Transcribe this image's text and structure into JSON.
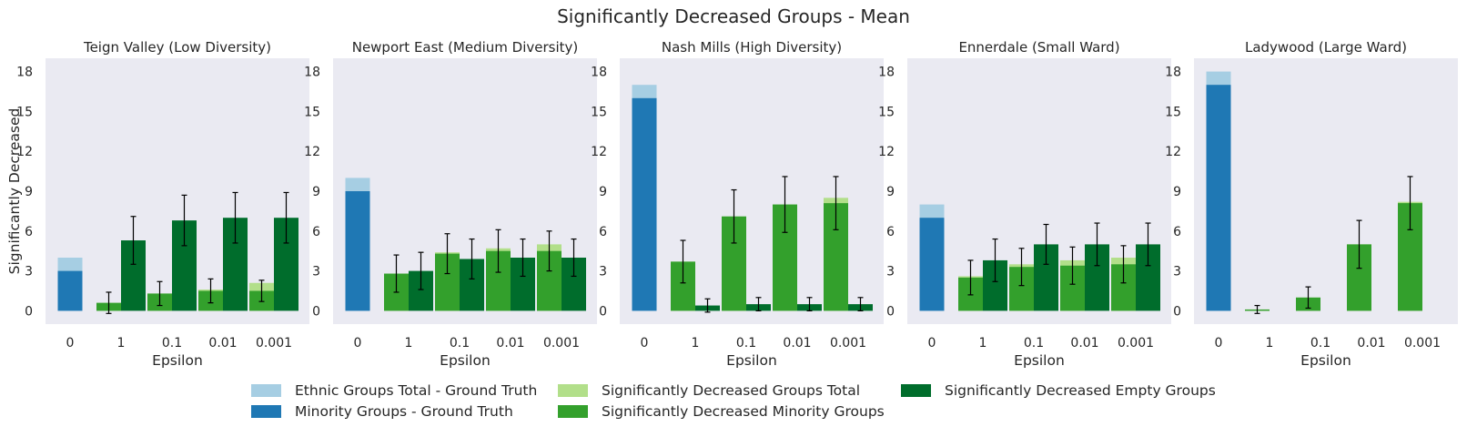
{
  "title": "Significantly Decreased Groups  - Mean",
  "colors": {
    "bg": "#eaeaf2",
    "ethnic_total": "#a6cee3",
    "minority": "#1f78b4",
    "sig_total": "#b2df8a",
    "sig_minority": "#33a02c",
    "sig_empty": "#006d2c"
  },
  "legend": [
    {
      "name": "Ethnic Groups Total - Ground Truth",
      "color_key": "ethnic_total"
    },
    {
      "name": "Minority Groups - Ground Truth",
      "color_key": "minority"
    },
    {
      "name": "Significantly Decreased Groups Total",
      "color_key": "sig_total"
    },
    {
      "name": "Significantly Decreased Minority Groups",
      "color_key": "sig_minority"
    },
    {
      "name": "Significantly Decreased Empty Groups",
      "color_key": "sig_empty"
    }
  ],
  "chart_data": {
    "type": "bar",
    "ylabel": "Significantly Decreased",
    "xlabel": "Epsilon",
    "ylim": [
      -1,
      19
    ],
    "yticks": [
      0,
      3,
      6,
      9,
      12,
      15,
      18
    ],
    "categories": [
      "0",
      "1",
      "0.1",
      "0.01",
      "0.001"
    ],
    "grid": false,
    "panels": [
      {
        "title": "Teign Valley (Low Diversity)",
        "ethnic_total": 4,
        "minority": 3,
        "sig_total": [
          0.6,
          1.3,
          1.6,
          2.1
        ],
        "sig_minority": [
          {
            "value": 0.6,
            "err": 0.8
          },
          {
            "value": 1.3,
            "err": 0.9
          },
          {
            "value": 1.5,
            "err": 0.9
          },
          {
            "value": 1.5,
            "err": 0.8
          }
        ],
        "sig_empty": [
          {
            "value": 5.3,
            "err": 1.8
          },
          {
            "value": 6.8,
            "err": 1.9
          },
          {
            "value": 7.0,
            "err": 1.9
          },
          {
            "value": 7.0,
            "err": 1.9
          }
        ]
      },
      {
        "title": "Newport East (Medium Diversity)",
        "ethnic_total": 10,
        "minority": 9,
        "sig_total": [
          2.8,
          4.4,
          4.7,
          5.0
        ],
        "sig_minority": [
          {
            "value": 2.8,
            "err": 1.4
          },
          {
            "value": 4.3,
            "err": 1.5
          },
          {
            "value": 4.5,
            "err": 1.6
          },
          {
            "value": 4.5,
            "err": 1.5
          }
        ],
        "sig_empty": [
          {
            "value": 3.0,
            "err": 1.4
          },
          {
            "value": 3.9,
            "err": 1.5
          },
          {
            "value": 4.0,
            "err": 1.4
          },
          {
            "value": 4.0,
            "err": 1.4
          }
        ]
      },
      {
        "title": "Nash Mills (High Diversity)",
        "ethnic_total": 17,
        "minority": 16,
        "sig_total": [
          3.7,
          7.1,
          8.0,
          8.5
        ],
        "sig_minority": [
          {
            "value": 3.7,
            "err": 1.6
          },
          {
            "value": 7.1,
            "err": 2.0
          },
          {
            "value": 8.0,
            "err": 2.1
          },
          {
            "value": 8.1,
            "err": 2.0
          }
        ],
        "sig_empty": [
          {
            "value": 0.4,
            "err": 0.5
          },
          {
            "value": 0.5,
            "err": 0.5
          },
          {
            "value": 0.5,
            "err": 0.5
          },
          {
            "value": 0.5,
            "err": 0.5
          }
        ]
      },
      {
        "title": "Ennerdale (Small Ward)",
        "ethnic_total": 8,
        "minority": 7,
        "sig_total": [
          2.6,
          3.5,
          3.8,
          4.0
        ],
        "sig_minority": [
          {
            "value": 2.5,
            "err": 1.3
          },
          {
            "value": 3.3,
            "err": 1.4
          },
          {
            "value": 3.4,
            "err": 1.4
          },
          {
            "value": 3.5,
            "err": 1.4
          }
        ],
        "sig_empty": [
          {
            "value": 3.8,
            "err": 1.6
          },
          {
            "value": 5.0,
            "err": 1.5
          },
          {
            "value": 5.0,
            "err": 1.6
          },
          {
            "value": 5.0,
            "err": 1.6
          }
        ]
      },
      {
        "title": "Ladywood (Large Ward)",
        "ethnic_total": 18,
        "minority": 17,
        "sig_total": [
          0.1,
          1.0,
          5.0,
          8.2
        ],
        "sig_minority": [
          {
            "value": 0.1,
            "err": 0.3
          },
          {
            "value": 1.0,
            "err": 0.8
          },
          {
            "value": 5.0,
            "err": 1.8
          },
          {
            "value": 8.1,
            "err": 2.0
          }
        ],
        "sig_empty": [
          {
            "value": 0,
            "err": 0
          },
          {
            "value": 0,
            "err": 0
          },
          {
            "value": 0,
            "err": 0
          },
          {
            "value": 0,
            "err": 0
          }
        ]
      }
    ]
  }
}
